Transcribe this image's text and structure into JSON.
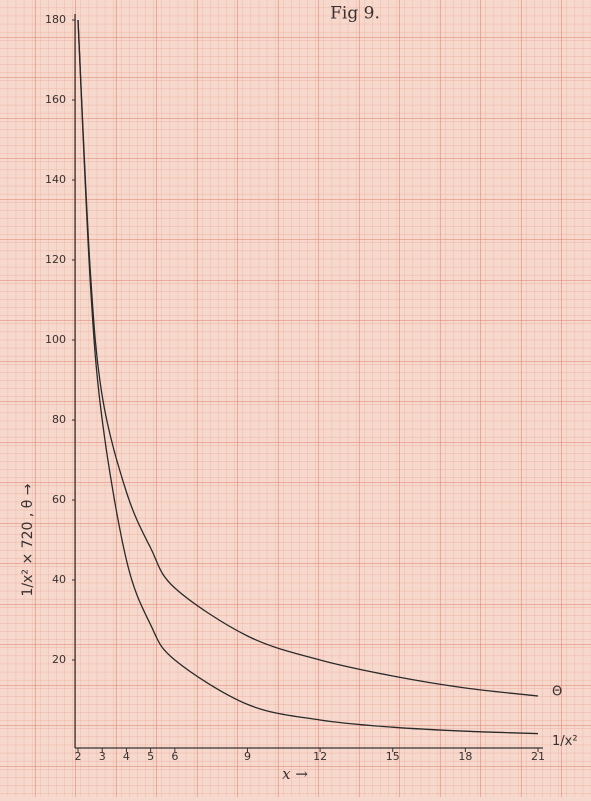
{
  "chart_data": {
    "type": "line",
    "title": "Fig 9.",
    "x_label": "x →",
    "y_label": "1/x² × 720 ,  θ →",
    "x": [
      2,
      2.5,
      3,
      4,
      5,
      6,
      9,
      12,
      15,
      18,
      21
    ],
    "series": [
      {
        "name": "Θ",
        "color": "#2a2a2a",
        "values": [
          180,
          118,
          86,
          62,
          48,
          38,
          26,
          20,
          16,
          13,
          11
        ]
      },
      {
        "name": "1/x²",
        "color": "#2a2a2a",
        "values": [
          180,
          115.2,
          80,
          45,
          28.8,
          20,
          8.9,
          5,
          3.2,
          2.2,
          1.6
        ]
      }
    ],
    "xlim": [
      2,
      21
    ],
    "xticks": [
      2,
      3,
      4,
      5,
      6,
      9,
      12,
      15,
      18,
      21
    ],
    "ylim": [
      0,
      180
    ],
    "yticks": [
      20,
      40,
      60,
      80,
      100,
      120,
      140,
      160,
      180
    ]
  }
}
